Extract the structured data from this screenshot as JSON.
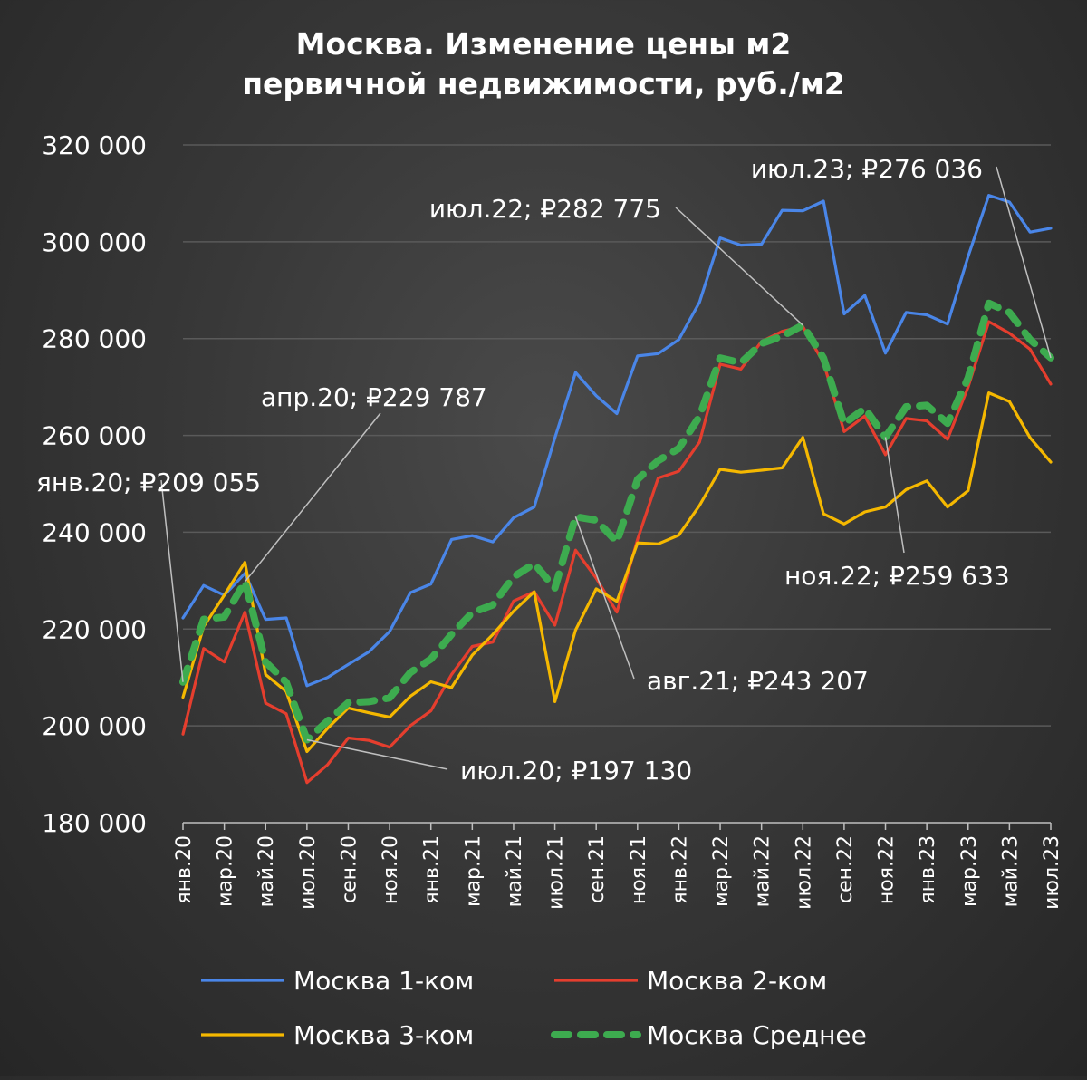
{
  "colors": {
    "grid": "#5a5a5a",
    "axis": "#bfbfbf",
    "leader": "#bfbfbf"
  },
  "chart_data": {
    "type": "line",
    "title": "Москва. Изменение цены м2 первичной недвижимости, руб./м2",
    "title_lines": [
      "Москва. Изменение цены м2",
      "первичной недвижимости, руб./м2"
    ],
    "xlabel": "",
    "ylabel": "",
    "ylim": [
      180000,
      320000
    ],
    "yticks": [
      180000,
      200000,
      220000,
      240000,
      260000,
      280000,
      300000,
      320000
    ],
    "ytick_labels": [
      "180 000",
      "200 000",
      "220 000",
      "240 000",
      "260 000",
      "280 000",
      "300 000",
      "320 000"
    ],
    "grid": true,
    "legend": "bottom",
    "categories": [
      "янв.20",
      "фев.20",
      "мар.20",
      "апр.20",
      "май.20",
      "июн.20",
      "июл.20",
      "авг.20",
      "сен.20",
      "окт.20",
      "ноя.20",
      "дек.20",
      "янв.21",
      "фев.21",
      "мар.21",
      "апр.21",
      "май.21",
      "июн.21",
      "июл.21",
      "авг.21",
      "сен.21",
      "окт.21",
      "ноя.21",
      "дек.21",
      "янв.22",
      "фев.22",
      "мар.22",
      "апр.22",
      "май.22",
      "июн.22",
      "июл.22",
      "авг.22",
      "сен.22",
      "окт.22",
      "ноя.22",
      "дек.22",
      "янв.23",
      "фев.23",
      "мар.23",
      "апр.23",
      "май.23",
      "июн.23",
      "июл.23"
    ],
    "tick_labels": [
      "янв.20",
      "мар.20",
      "май.20",
      "июл.20",
      "сен.20",
      "ноя.20",
      "янв.21",
      "мар.21",
      "май.21",
      "июл.21",
      "сен.21",
      "ноя.21",
      "янв.22",
      "мар.22",
      "май.22",
      "июл.22",
      "сен.22",
      "ноя.22",
      "янв.23",
      "мар.23",
      "май.23",
      "июл.23"
    ],
    "series": [
      {
        "name": "Москва 1-ком",
        "color": "#4a86e8",
        "style": "solid",
        "values": [
          222300,
          229000,
          227000,
          231500,
          222000,
          222300,
          208300,
          210000,
          212700,
          215300,
          219500,
          227500,
          229300,
          238500,
          239300,
          238000,
          243000,
          245200,
          259500,
          273000,
          268200,
          264500,
          276400,
          276900,
          279800,
          287500,
          300800,
          299300,
          299500,
          306500,
          306400,
          308400,
          285100,
          288900,
          277000,
          285400,
          284900,
          283000,
          297000,
          309600,
          308200,
          302000,
          302800
        ]
      },
      {
        "name": "Москва 2-ком",
        "color": "#e53e2e",
        "style": "solid",
        "values": [
          198300,
          216000,
          213200,
          223500,
          204700,
          202500,
          188300,
          192000,
          197500,
          197000,
          195600,
          200000,
          203100,
          210600,
          216400,
          217300,
          225800,
          227700,
          220800,
          236300,
          230500,
          223500,
          238500,
          251200,
          252600,
          258600,
          274700,
          273700,
          279400,
          281500,
          282500,
          275000,
          260800,
          264000,
          256000,
          263500,
          263000,
          259200,
          270000,
          283500,
          281100,
          277800,
          270600
        ]
      },
      {
        "name": "Москва 3-ком",
        "color": "#f5b800",
        "style": "solid",
        "values": [
          205900,
          220500,
          227000,
          233800,
          210600,
          207100,
          194700,
          199500,
          203700,
          202700,
          201800,
          206100,
          209100,
          207900,
          214600,
          218900,
          223700,
          227700,
          205000,
          219800,
          228300,
          225700,
          237800,
          237600,
          239400,
          245500,
          253000,
          252400,
          252800,
          253300,
          259600,
          243800,
          241700,
          244200,
          245200,
          248800,
          250600,
          245200,
          248600,
          268800,
          267000,
          259500,
          254500
        ]
      },
      {
        "name": "Москва Среднее",
        "color": "#3dab4f",
        "style": "dashed",
        "values": [
          209055,
          222000,
          222500,
          229787,
          213200,
          209000,
          197130,
          201000,
          204800,
          205000,
          205800,
          211000,
          213800,
          218900,
          223400,
          225000,
          230800,
          233500,
          228500,
          243207,
          242500,
          238000,
          250900,
          254800,
          257300,
          263900,
          276000,
          275000,
          279000,
          280500,
          282775,
          276000,
          262400,
          265600,
          259633,
          265900,
          266200,
          262500,
          271900,
          287300,
          285400,
          279800,
          276036
        ]
      }
    ],
    "annotations": [
      {
        "text": "янв.20;  ₽209 055",
        "series": 3,
        "index": 0
      },
      {
        "text": "апр.20;  ₽229 787",
        "series": 3,
        "index": 3
      },
      {
        "text": "июл.20;  ₽197 130",
        "series": 3,
        "index": 6
      },
      {
        "text": "авг.21;  ₽243 207",
        "series": 3,
        "index": 19
      },
      {
        "text": "июл.22;  ₽282 775",
        "series": 3,
        "index": 30
      },
      {
        "text": "ноя.22;  ₽259 633",
        "series": 3,
        "index": 34
      },
      {
        "text": "июл.23;  ₽276 036",
        "series": 3,
        "index": 42
      }
    ]
  }
}
